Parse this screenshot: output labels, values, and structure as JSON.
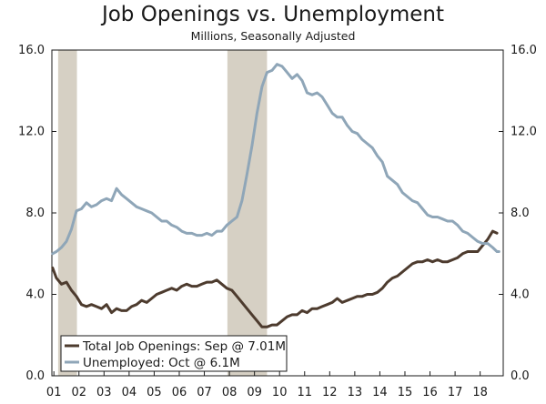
{
  "chart_data": {
    "type": "line",
    "title": "Job Openings vs. Unemployment",
    "subtitle": "Millions, Seasonally Adjusted",
    "xlabel": "",
    "ylabel": "",
    "xlim": [
      2000.92,
      2018.92
    ],
    "ylim": [
      0,
      16
    ],
    "yticks": [
      0,
      4,
      8,
      12,
      16
    ],
    "ytick_labels": [
      "0.0",
      "4.0",
      "8.0",
      "12.0",
      "16.0"
    ],
    "xticks": [
      2001,
      2002,
      2003,
      2004,
      2005,
      2006,
      2007,
      2008,
      2009,
      2010,
      2011,
      2012,
      2013,
      2014,
      2015,
      2016,
      2017,
      2018
    ],
    "xtick_labels": [
      "01",
      "02",
      "03",
      "04",
      "05",
      "06",
      "07",
      "08",
      "09",
      "10",
      "11",
      "12",
      "13",
      "14",
      "15",
      "16",
      "17",
      "18"
    ],
    "grid": false,
    "legend_position": "bottom-left",
    "recessions": [
      [
        2001.17,
        2001.92
      ],
      [
        2007.92,
        2009.5
      ]
    ],
    "series": [
      {
        "name": "Total Job Openings: Sep @ 7.01M",
        "color": "#4d3b2e",
        "x": [
          2000.95,
          2001.1,
          2001.3,
          2001.5,
          2001.7,
          2001.9,
          2002.1,
          2002.3,
          2002.5,
          2002.7,
          2002.9,
          2003.1,
          2003.3,
          2003.5,
          2003.7,
          2003.9,
          2004.1,
          2004.3,
          2004.5,
          2004.7,
          2004.9,
          2005.1,
          2005.3,
          2005.5,
          2005.7,
          2005.9,
          2006.1,
          2006.3,
          2006.5,
          2006.7,
          2006.9,
          2007.1,
          2007.3,
          2007.5,
          2007.7,
          2007.9,
          2008.1,
          2008.3,
          2008.5,
          2008.7,
          2008.9,
          2009.1,
          2009.3,
          2009.5,
          2009.7,
          2009.9,
          2010.1,
          2010.3,
          2010.5,
          2010.7,
          2010.9,
          2011.1,
          2011.3,
          2011.5,
          2011.7,
          2011.9,
          2012.1,
          2012.3,
          2012.5,
          2012.7,
          2012.9,
          2013.1,
          2013.3,
          2013.5,
          2013.7,
          2013.9,
          2014.1,
          2014.3,
          2014.5,
          2014.7,
          2014.9,
          2015.1,
          2015.3,
          2015.5,
          2015.7,
          2015.9,
          2016.1,
          2016.3,
          2016.5,
          2016.7,
          2016.9,
          2017.1,
          2017.3,
          2017.5,
          2017.7,
          2017.9,
          2018.1,
          2018.3,
          2018.5,
          2018.67
        ],
        "values": [
          5.3,
          4.8,
          4.5,
          4.6,
          4.2,
          3.9,
          3.5,
          3.4,
          3.5,
          3.4,
          3.3,
          3.5,
          3.1,
          3.3,
          3.2,
          3.2,
          3.4,
          3.5,
          3.7,
          3.6,
          3.8,
          4.0,
          4.1,
          4.2,
          4.3,
          4.2,
          4.4,
          4.5,
          4.4,
          4.4,
          4.5,
          4.6,
          4.6,
          4.7,
          4.5,
          4.3,
          4.2,
          3.9,
          3.6,
          3.3,
          3.0,
          2.7,
          2.4,
          2.4,
          2.5,
          2.5,
          2.7,
          2.9,
          3.0,
          3.0,
          3.2,
          3.1,
          3.3,
          3.3,
          3.4,
          3.5,
          3.6,
          3.8,
          3.6,
          3.7,
          3.8,
          3.9,
          3.9,
          4.0,
          4.0,
          4.1,
          4.3,
          4.6,
          4.8,
          4.9,
          5.1,
          5.3,
          5.5,
          5.6,
          5.6,
          5.7,
          5.6,
          5.7,
          5.6,
          5.6,
          5.7,
          5.8,
          6.0,
          6.1,
          6.1,
          6.1,
          6.4,
          6.7,
          7.1,
          7.01
        ]
      },
      {
        "name": "Unemployed: Oct @ 6.1M",
        "color": "#8fa6b8",
        "x": [
          2000.95,
          2001.1,
          2001.3,
          2001.5,
          2001.7,
          2001.9,
          2002.1,
          2002.3,
          2002.5,
          2002.7,
          2002.9,
          2003.1,
          2003.3,
          2003.5,
          2003.7,
          2003.9,
          2004.1,
          2004.3,
          2004.5,
          2004.7,
          2004.9,
          2005.1,
          2005.3,
          2005.5,
          2005.7,
          2005.9,
          2006.1,
          2006.3,
          2006.5,
          2006.7,
          2006.9,
          2007.1,
          2007.3,
          2007.5,
          2007.7,
          2007.9,
          2008.1,
          2008.3,
          2008.5,
          2008.7,
          2008.9,
          2009.1,
          2009.3,
          2009.5,
          2009.7,
          2009.9,
          2010.1,
          2010.3,
          2010.5,
          2010.7,
          2010.9,
          2011.1,
          2011.3,
          2011.5,
          2011.7,
          2011.9,
          2012.1,
          2012.3,
          2012.5,
          2012.7,
          2012.9,
          2013.1,
          2013.3,
          2013.5,
          2013.7,
          2013.9,
          2014.1,
          2014.3,
          2014.5,
          2014.7,
          2014.9,
          2015.1,
          2015.3,
          2015.5,
          2015.7,
          2015.9,
          2016.1,
          2016.3,
          2016.5,
          2016.7,
          2016.9,
          2017.1,
          2017.3,
          2017.5,
          2017.7,
          2017.9,
          2018.1,
          2018.3,
          2018.5,
          2018.67,
          2018.75
        ],
        "values": [
          6.0,
          6.1,
          6.3,
          6.6,
          7.2,
          8.1,
          8.2,
          8.5,
          8.3,
          8.4,
          8.6,
          8.7,
          8.6,
          9.2,
          8.9,
          8.7,
          8.5,
          8.3,
          8.2,
          8.1,
          8.0,
          7.8,
          7.6,
          7.6,
          7.4,
          7.3,
          7.1,
          7.0,
          7.0,
          6.9,
          6.9,
          7.0,
          6.9,
          7.1,
          7.1,
          7.4,
          7.6,
          7.8,
          8.6,
          9.9,
          11.3,
          12.9,
          14.2,
          14.9,
          15.0,
          15.3,
          15.2,
          14.9,
          14.6,
          14.8,
          14.5,
          13.9,
          13.8,
          13.9,
          13.7,
          13.3,
          12.9,
          12.7,
          12.7,
          12.3,
          12.0,
          11.9,
          11.6,
          11.4,
          11.2,
          10.8,
          10.5,
          9.8,
          9.6,
          9.4,
          9.0,
          8.8,
          8.6,
          8.5,
          8.2,
          7.9,
          7.8,
          7.8,
          7.7,
          7.6,
          7.6,
          7.4,
          7.1,
          7.0,
          6.8,
          6.6,
          6.5,
          6.5,
          6.3,
          6.1,
          6.1
        ]
      }
    ]
  }
}
